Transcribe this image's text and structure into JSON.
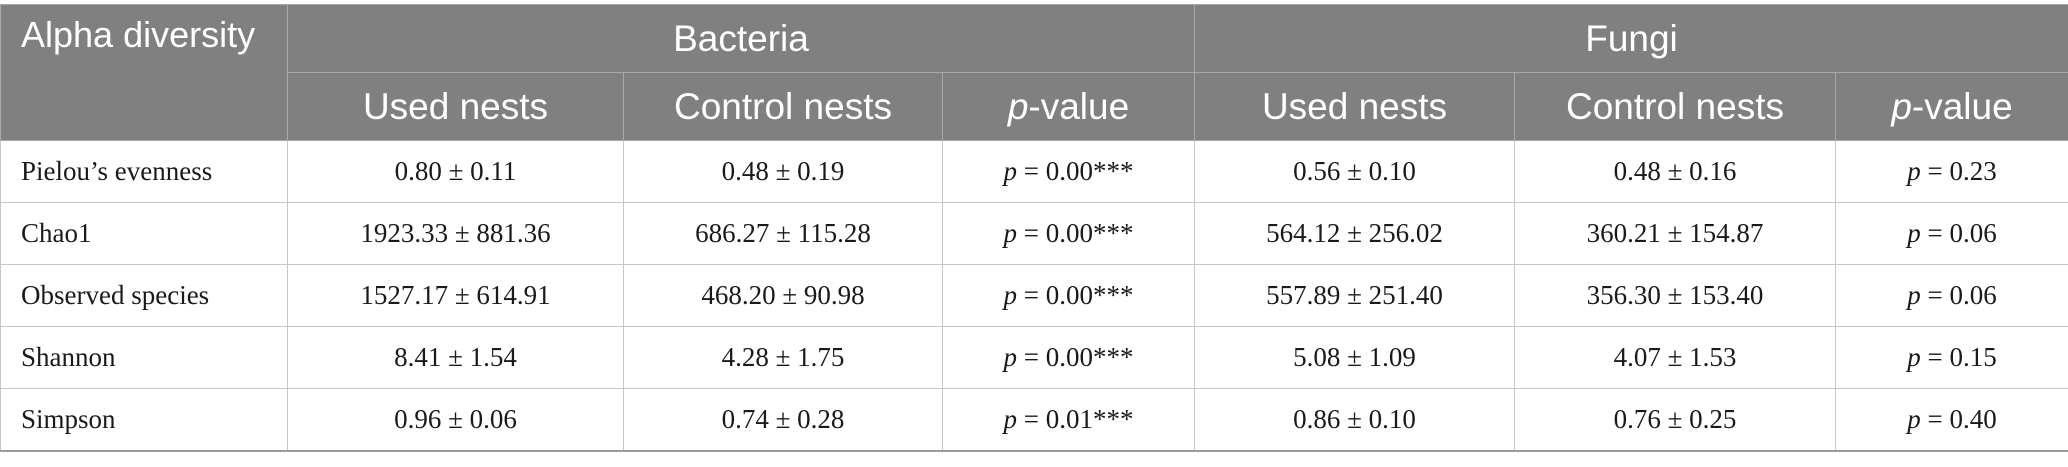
{
  "header": {
    "row_label": "Alpha diversity",
    "group_bacteria": "Bacteria",
    "group_fungi": "Fungi",
    "col_used": "Used nests",
    "col_control": "Control nests",
    "col_p_italic": "p",
    "col_p_rest": "-value"
  },
  "p_prefix": "p",
  "rows": [
    {
      "label": "Pielou’s evenness",
      "b_used": "0.80 ± 0.11",
      "b_control": "0.48 ± 0.19",
      "b_p": " = 0.00***",
      "f_used": "0.56 ± 0.10",
      "f_control": "0.48 ± 0.16",
      "f_p": " = 0.23"
    },
    {
      "label": "Chao1",
      "b_used": "1923.33 ± 881.36",
      "b_control": "686.27 ± 115.28",
      "b_p": " = 0.00***",
      "f_used": "564.12 ± 256.02",
      "f_control": "360.21 ± 154.87",
      "f_p": " = 0.06"
    },
    {
      "label": "Observed species",
      "b_used": "1527.17 ± 614.91",
      "b_control": "468.20 ± 90.98",
      "b_p": " = 0.00***",
      "f_used": "557.89 ± 251.40",
      "f_control": "356.30 ± 153.40",
      "f_p": " = 0.06"
    },
    {
      "label": "Shannon",
      "b_used": "8.41 ± 1.54",
      "b_control": "4.28 ± 1.75",
      "b_p": " = 0.00***",
      "f_used": "5.08 ± 1.09",
      "f_control": "4.07 ± 1.53",
      "f_p": " = 0.15"
    },
    {
      "label": "Simpson",
      "b_used": "0.96 ± 0.06",
      "b_control": "0.74 ± 0.28",
      "b_p": " = 0.01***",
      "f_used": "0.86 ± 0.10",
      "f_control": "0.76 ± 0.25",
      "f_p": " = 0.40"
    }
  ]
}
